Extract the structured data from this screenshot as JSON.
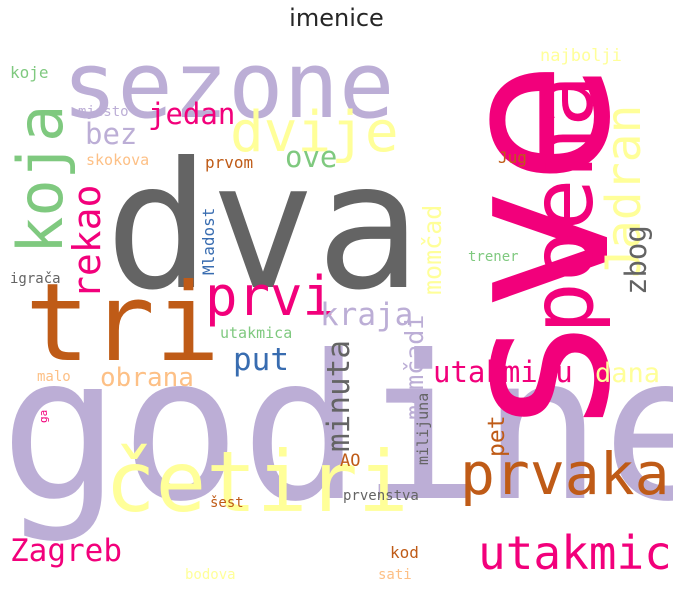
{
  "title": "imenice",
  "colors": {
    "purple": "#bcaed6",
    "pink": "#f2007b",
    "grey": "#646464",
    "yellow": "#ffff99",
    "green": "#7fc97f",
    "orange": "#bf5b17",
    "peach": "#fdc086",
    "blue": "#386cb0"
  },
  "words": [
    {
      "text": "godine",
      "color": "#bcaed6"
    },
    {
      "text": "dva",
      "color": "#646464"
    },
    {
      "text": "sve",
      "color": "#f2007b"
    },
    {
      "text": "sezone",
      "color": "#bcaed6"
    },
    {
      "text": "tri",
      "color": "#bf5b17"
    },
    {
      "text": "četiri",
      "color": "#ffff99"
    },
    {
      "text": "poena",
      "color": "#f2007b"
    },
    {
      "text": "koja",
      "color": "#7fc97f"
    },
    {
      "text": "dvije",
      "color": "#ffff99"
    },
    {
      "text": "prvaka",
      "color": "#bf5b17"
    },
    {
      "text": "prvi",
      "color": "#f2007b"
    },
    {
      "text": "Jadran",
      "color": "#ffff99"
    },
    {
      "text": "utakmice",
      "color": "#f2007b"
    },
    {
      "text": "Zagreb",
      "color": "#f2007b"
    },
    {
      "text": "kraja",
      "color": "#bcaed6"
    },
    {
      "text": "rekao",
      "color": "#f2007b"
    },
    {
      "text": "bez",
      "color": "#bcaed6"
    },
    {
      "text": "jedan",
      "color": "#f2007b"
    },
    {
      "text": "ove",
      "color": "#7fc97f"
    },
    {
      "text": "put",
      "color": "#386cb0"
    },
    {
      "text": "zbog",
      "color": "#646464"
    },
    {
      "text": "minuta",
      "color": "#646464"
    },
    {
      "text": "utakmicu",
      "color": "#f2007b"
    },
    {
      "text": "dana",
      "color": "#ffff99"
    },
    {
      "text": "obrana",
      "color": "#fdc086"
    },
    {
      "text": "momčad",
      "color": "#ffff99"
    },
    {
      "text": "momčadi",
      "color": "#bcaed6"
    },
    {
      "text": "pet",
      "color": "#bf5b17"
    },
    {
      "text": "Mladost",
      "color": "#386cb0"
    },
    {
      "text": "najbolji",
      "color": "#ffff99"
    },
    {
      "text": "Jug",
      "color": "#bf5b17"
    },
    {
      "text": "skokova",
      "color": "#fdc086"
    },
    {
      "text": "prvom",
      "color": "#bf5b17"
    },
    {
      "text": "koje",
      "color": "#7fc97f"
    },
    {
      "text": "mjesto",
      "color": "#bcaed6"
    },
    {
      "text": "trener",
      "color": "#7fc97f"
    },
    {
      "text": "igrača",
      "color": "#646464"
    },
    {
      "text": "utakmica",
      "color": "#7fc97f"
    },
    {
      "text": "malo",
      "color": "#fdc086"
    },
    {
      "text": "AO",
      "color": "#bf5b17"
    },
    {
      "text": "milijuna",
      "color": "#646464"
    },
    {
      "text": "prvenstva",
      "color": "#646464"
    },
    {
      "text": "šest",
      "color": "#bf5b17"
    },
    {
      "text": "kod",
      "color": "#bf5b17"
    },
    {
      "text": "bodova",
      "color": "#ffff99"
    },
    {
      "text": "sati",
      "color": "#fdc086"
    },
    {
      "text": "ga",
      "color": "#f2007b"
    }
  ]
}
